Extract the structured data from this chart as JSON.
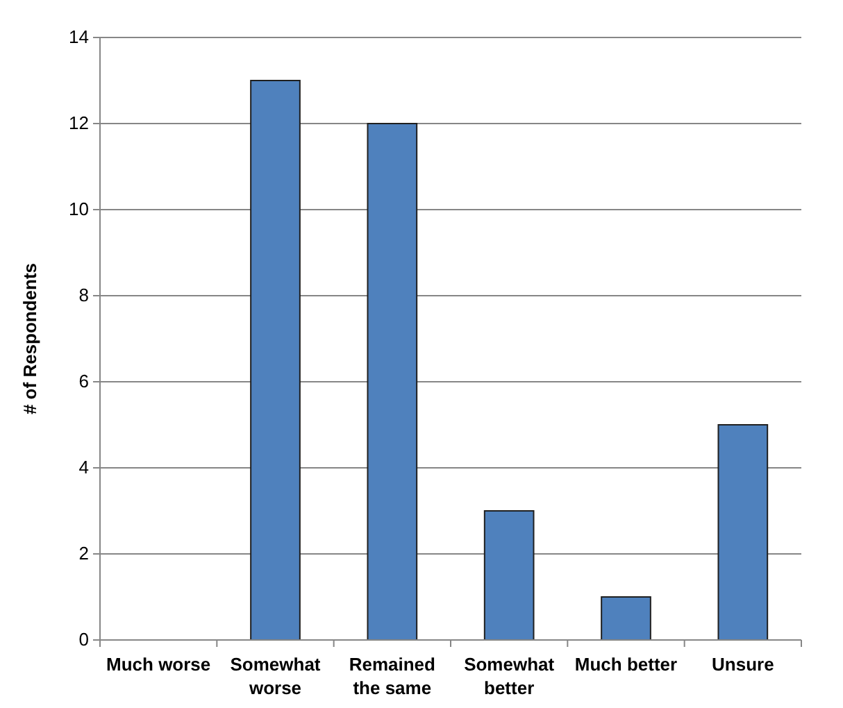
{
  "chart_data": {
    "type": "bar",
    "ylabel": "# of Respondents",
    "categories": [
      "Much worse",
      "Somewhat worse",
      "Remained the same",
      "Somewhat better",
      "Much better",
      "Unsure"
    ],
    "values": [
      0,
      13,
      12,
      3,
      1,
      5
    ],
    "color": "#4f81bd",
    "ylim": [
      0,
      14
    ],
    "yticks": [
      0,
      2,
      4,
      6,
      8,
      10,
      12,
      14
    ],
    "grid": "y"
  }
}
